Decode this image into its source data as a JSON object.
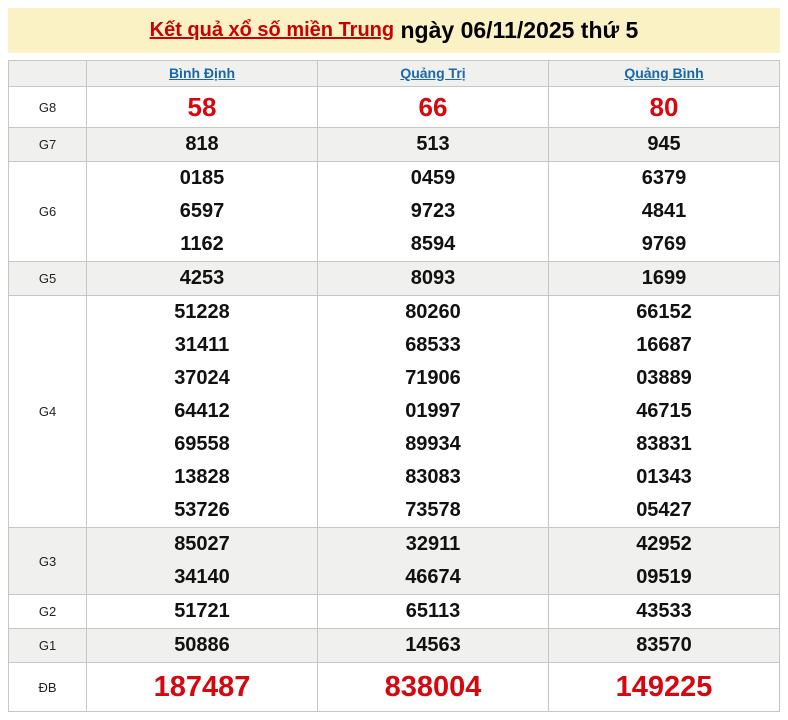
{
  "title": {
    "link": "Kết quả xổ số miền Trung",
    "rest": " ngày 06/11/2025 thứ 5"
  },
  "table": {
    "provinces": [
      "Bình Định",
      "Quảng Trị",
      "Quảng Bình"
    ],
    "rows": [
      {
        "label": "G8",
        "variant": "red",
        "values": [
          [
            "58"
          ],
          [
            "66"
          ],
          [
            "80"
          ]
        ]
      },
      {
        "label": "G7",
        "variant": "default",
        "values": [
          [
            "818"
          ],
          [
            "513"
          ],
          [
            "945"
          ]
        ]
      },
      {
        "label": "G6",
        "variant": "default",
        "values": [
          [
            "0185",
            "6597",
            "1162"
          ],
          [
            "0459",
            "9723",
            "8594"
          ],
          [
            "6379",
            "4841",
            "9769"
          ]
        ]
      },
      {
        "label": "G5",
        "variant": "default",
        "values": [
          [
            "4253"
          ],
          [
            "8093"
          ],
          [
            "1699"
          ]
        ]
      },
      {
        "label": "G4",
        "variant": "default",
        "values": [
          [
            "51228",
            "31411",
            "37024",
            "64412",
            "69558",
            "13828",
            "53726"
          ],
          [
            "80260",
            "68533",
            "71906",
            "01997",
            "89934",
            "83083",
            "73578"
          ],
          [
            "66152",
            "16687",
            "03889",
            "46715",
            "83831",
            "01343",
            "05427"
          ]
        ]
      },
      {
        "label": "G3",
        "variant": "default",
        "values": [
          [
            "85027",
            "34140"
          ],
          [
            "32911",
            "46674"
          ],
          [
            "42952",
            "09519"
          ]
        ]
      },
      {
        "label": "G2",
        "variant": "default",
        "values": [
          [
            "51721"
          ],
          [
            "65113"
          ],
          [
            "43533"
          ]
        ]
      },
      {
        "label": "G1",
        "variant": "default",
        "values": [
          [
            "50886"
          ],
          [
            "14563"
          ],
          [
            "83570"
          ]
        ]
      },
      {
        "label": "ĐB",
        "variant": "red-big",
        "values": [
          [
            "187487"
          ],
          [
            "838004"
          ],
          [
            "149225"
          ]
        ]
      }
    ]
  },
  "colors": {
    "banner_bg": "#faf1c4",
    "title_red": "#cc0000",
    "number_red": "#d6070e",
    "link_blue": "#1a68a6",
    "shaded_row": "#f0f0ee",
    "border": "#c6c6c6"
  }
}
